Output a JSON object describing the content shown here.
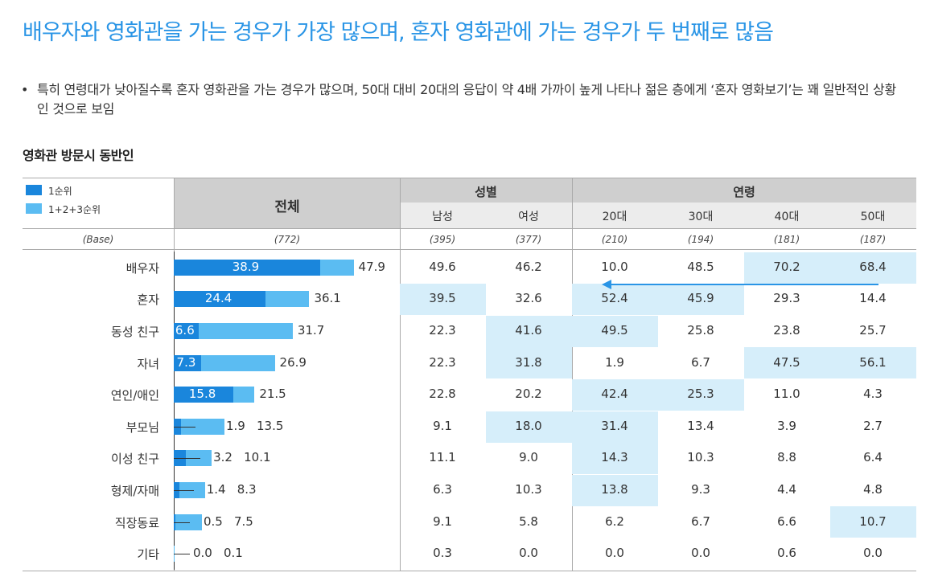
{
  "title": "배우자와 영화관을 가는 경우가 가장 많으며, 혼자 영화관에 가는 경우가 두 번째로 많음",
  "bullet": "특히 연령대가 낮아질수록 혼자 영화관을 가는 경우가 많으며, 50대 대비 20대의 응답이 약 4배 가까이 높게 나타나 젊은 층에게 ‘혼자 영화보기’는 꽤 일반적인 상황인 것으로 보임",
  "bullet_mark": "•",
  "chart_data": {
    "type": "table",
    "title": "영화관 방문시 동반인",
    "legend": [
      {
        "label": "1순위",
        "color": "#1a86dc"
      },
      {
        "label": "1+2+3순위",
        "color": "#5bbcf2"
      }
    ],
    "header": {
      "total": "전체",
      "group_gender": "성별",
      "group_age": "연령",
      "columns": [
        "남성",
        "여성",
        "20대",
        "30대",
        "40대",
        "50대"
      ],
      "base_label": "(Base)",
      "base_total": "(772)",
      "bases": [
        "(395)",
        "(377)",
        "(210)",
        "(194)",
        "(181)",
        "(187)"
      ]
    },
    "rows": [
      {
        "label": "배우자",
        "rank1": "38.9",
        "rank123": "47.9",
        "values": [
          "49.6",
          "46.2",
          "10.0",
          "48.5",
          "70.2",
          "68.4"
        ],
        "highlight": [
          4,
          5
        ]
      },
      {
        "label": "혼자",
        "rank1": "24.4",
        "rank123": "36.1",
        "values": [
          "39.5",
          "32.6",
          "52.4",
          "45.9",
          "29.3",
          "14.4"
        ],
        "highlight": [
          0,
          2,
          3
        ]
      },
      {
        "label": "동성 친구",
        "rank1": "6.6",
        "rank123": "31.7",
        "values": [
          "22.3",
          "41.6",
          "49.5",
          "25.8",
          "23.8",
          "25.7"
        ],
        "highlight": [
          1,
          2
        ]
      },
      {
        "label": "자녀",
        "rank1": "7.3",
        "rank123": "26.9",
        "values": [
          "22.3",
          "31.8",
          "1.9",
          "6.7",
          "47.5",
          "56.1"
        ],
        "highlight": [
          1,
          4,
          5
        ]
      },
      {
        "label": "연인/애인",
        "rank1": "15.8",
        "rank123": "21.5",
        "values": [
          "22.8",
          "20.2",
          "42.4",
          "25.3",
          "11.0",
          "4.3"
        ],
        "highlight": [
          2,
          3
        ]
      },
      {
        "label": "부모님",
        "rank1": "1.9",
        "rank123": "13.5",
        "values": [
          "9.1",
          "18.0",
          "31.4",
          "13.4",
          "3.9",
          "2.7"
        ],
        "highlight": [
          1,
          2
        ]
      },
      {
        "label": "이성 친구",
        "rank1": "3.2",
        "rank123": "10.1",
        "values": [
          "11.1",
          "9.0",
          "14.3",
          "10.3",
          "8.8",
          "6.4"
        ],
        "highlight": [
          2
        ]
      },
      {
        "label": "형제/자매",
        "rank1": "1.4",
        "rank123": "8.3",
        "values": [
          "6.3",
          "10.3",
          "13.8",
          "9.3",
          "4.4",
          "4.8"
        ],
        "highlight": [
          2
        ]
      },
      {
        "label": "직장동료",
        "rank1": "0.5",
        "rank123": "7.5",
        "values": [
          "9.1",
          "5.8",
          "6.2",
          "6.7",
          "6.6",
          "10.7"
        ],
        "highlight": [
          5
        ]
      },
      {
        "label": "기타",
        "rank1": "0.0",
        "rank123": "0.1",
        "values": [
          "0.3",
          "0.0",
          "0.0",
          "0.0",
          "0.6",
          "0.0"
        ],
        "highlight": []
      }
    ],
    "bar_scale_max": 60
  },
  "colors": {
    "title": "#2a95e6",
    "rank1": "#1a86dc",
    "rank123": "#5bbcf2",
    "highlight": "#d6eefa",
    "arrow": "#2a95e6"
  }
}
